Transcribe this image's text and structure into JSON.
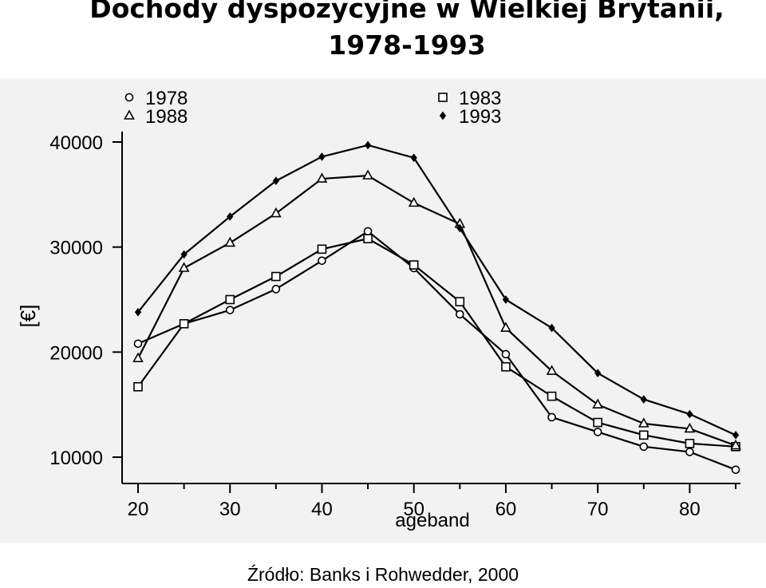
{
  "title_line1": "Dochody dyspozycyjne w Wielkiej Brytanii,",
  "title_line2": "1978-1993",
  "source": "Źródło: Banks i Rohwedder, 2000",
  "chart_data": {
    "type": "line",
    "xlabel": "ageband",
    "ylabel": "[€]",
    "xlim": [
      20,
      85
    ],
    "ylim": [
      8000,
      41000
    ],
    "x_ticks": [
      20,
      30,
      40,
      50,
      60,
      70,
      80
    ],
    "x_tick_labels": [
      "20",
      "30",
      "40",
      "50",
      "60",
      "70",
      "80"
    ],
    "y_ticks": [
      10000,
      20000,
      30000,
      40000
    ],
    "y_tick_labels": [
      "10000",
      "20000",
      "30000",
      "40000"
    ],
    "grid": false,
    "legend_position": "top",
    "x": [
      20,
      25,
      30,
      35,
      40,
      45,
      50,
      55,
      60,
      65,
      70,
      75,
      80,
      85
    ],
    "series": [
      {
        "name": "1978",
        "marker": "circle",
        "values": [
          20800,
          22700,
          24000,
          26000,
          28700,
          31500,
          28000,
          23600,
          19800,
          13800,
          12400,
          11000,
          10500,
          8800
        ]
      },
      {
        "name": "1983",
        "marker": "square",
        "values": [
          16700,
          22700,
          25000,
          27200,
          29800,
          30800,
          28300,
          24800,
          18600,
          15800,
          13300,
          12100,
          11300,
          11000
        ]
      },
      {
        "name": "1988",
        "marker": "triangle",
        "values": [
          19400,
          28000,
          30400,
          33200,
          36500,
          36800,
          34200,
          32200,
          22300,
          18200,
          15000,
          13200,
          12700,
          11100
        ]
      },
      {
        "name": "1993",
        "marker": "diamond",
        "values": [
          23800,
          29300,
          32900,
          36300,
          38600,
          39700,
          38500,
          31800,
          25000,
          22300,
          18000,
          15500,
          14100,
          12100
        ]
      }
    ]
  }
}
